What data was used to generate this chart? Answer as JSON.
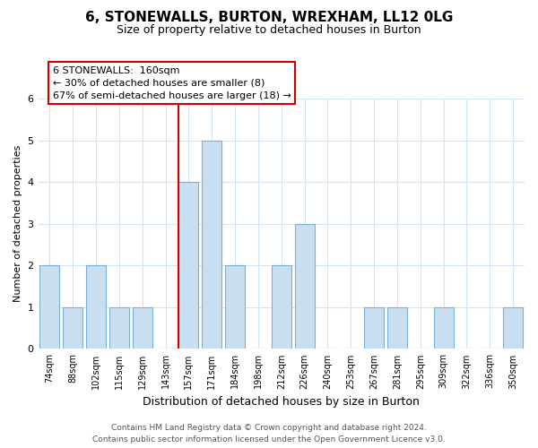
{
  "title": "6, STONEWALLS, BURTON, WREXHAM, LL12 0LG",
  "subtitle": "Size of property relative to detached houses in Burton",
  "xlabel": "Distribution of detached houses by size in Burton",
  "ylabel": "Number of detached properties",
  "bin_labels": [
    "74sqm",
    "88sqm",
    "102sqm",
    "115sqm",
    "129sqm",
    "143sqm",
    "157sqm",
    "171sqm",
    "184sqm",
    "198sqm",
    "212sqm",
    "226sqm",
    "240sqm",
    "253sqm",
    "267sqm",
    "281sqm",
    "295sqm",
    "309sqm",
    "322sqm",
    "336sqm",
    "350sqm"
  ],
  "bar_values": [
    2,
    1,
    2,
    1,
    1,
    0,
    4,
    5,
    2,
    0,
    2,
    3,
    0,
    0,
    1,
    1,
    0,
    1,
    0,
    0,
    1
  ],
  "bar_color": "#c9dff0",
  "bar_edgecolor": "#7bafd4",
  "vline_index": 6,
  "vline_color": "#cc0000",
  "annotation_title": "6 STONEWALLS:  160sqm",
  "annotation_line1": "← 30% of detached houses are smaller (8)",
  "annotation_line2": "67% of semi-detached houses are larger (18) →",
  "annotation_box_color": "#ffffff",
  "annotation_box_edge": "#cc0000",
  "ylim": [
    0,
    6
  ],
  "yticks": [
    0,
    1,
    2,
    3,
    4,
    5,
    6
  ],
  "footer_line1": "Contains HM Land Registry data © Crown copyright and database right 2024.",
  "footer_line2": "Contains public sector information licensed under the Open Government Licence v3.0.",
  "background_color": "#ffffff",
  "grid_color": "#d0e4f5"
}
